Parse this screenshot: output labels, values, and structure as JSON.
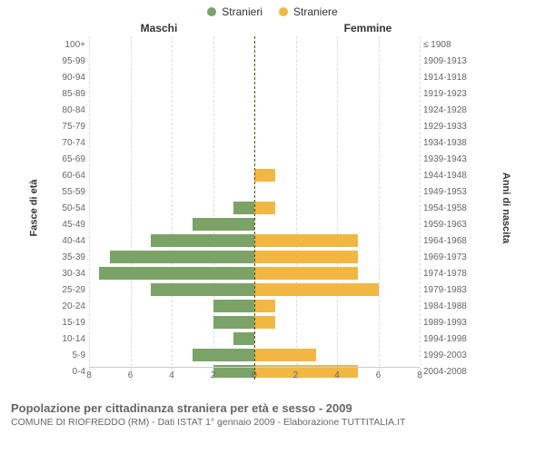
{
  "chart": {
    "type": "population-pyramid",
    "legend": {
      "male": {
        "label": "Stranieri",
        "color": "#7ba368"
      },
      "female": {
        "label": "Straniere",
        "color": "#f2b742"
      }
    },
    "col_headers": {
      "left": "Maschi",
      "right": "Femmine"
    },
    "y_label_left": "Fasce di età",
    "y_label_right": "Anni di nascita",
    "x_max": 8,
    "x_ticks": [
      8,
      6,
      4,
      2,
      0,
      2,
      4,
      6,
      8
    ],
    "grid_color": "#dddddd",
    "centerline_color": "#555500",
    "label_color": "#666666",
    "background": "#ffffff",
    "rows": [
      {
        "age": "100+",
        "year": "≤ 1908",
        "m": 0,
        "f": 0
      },
      {
        "age": "95-99",
        "year": "1909-1913",
        "m": 0,
        "f": 0
      },
      {
        "age": "90-94",
        "year": "1914-1918",
        "m": 0,
        "f": 0
      },
      {
        "age": "85-89",
        "year": "1919-1923",
        "m": 0,
        "f": 0
      },
      {
        "age": "80-84",
        "year": "1924-1928",
        "m": 0,
        "f": 0
      },
      {
        "age": "75-79",
        "year": "1929-1933",
        "m": 0,
        "f": 0
      },
      {
        "age": "70-74",
        "year": "1934-1938",
        "m": 0,
        "f": 0
      },
      {
        "age": "65-69",
        "year": "1939-1943",
        "m": 0,
        "f": 0
      },
      {
        "age": "60-64",
        "year": "1944-1948",
        "m": 0,
        "f": 1
      },
      {
        "age": "55-59",
        "year": "1949-1953",
        "m": 0,
        "f": 0
      },
      {
        "age": "50-54",
        "year": "1954-1958",
        "m": 1,
        "f": 1
      },
      {
        "age": "45-49",
        "year": "1959-1963",
        "m": 3,
        "f": 0
      },
      {
        "age": "40-44",
        "year": "1964-1968",
        "m": 5,
        "f": 5
      },
      {
        "age": "35-39",
        "year": "1969-1973",
        "m": 7,
        "f": 5
      },
      {
        "age": "30-34",
        "year": "1974-1978",
        "m": 7.5,
        "f": 5
      },
      {
        "age": "25-29",
        "year": "1979-1983",
        "m": 5,
        "f": 6
      },
      {
        "age": "20-24",
        "year": "1984-1988",
        "m": 2,
        "f": 1
      },
      {
        "age": "15-19",
        "year": "1989-1993",
        "m": 2,
        "f": 1
      },
      {
        "age": "10-14",
        "year": "1994-1998",
        "m": 1,
        "f": 0
      },
      {
        "age": "5-9",
        "year": "1999-2003",
        "m": 3,
        "f": 3
      },
      {
        "age": "0-4",
        "year": "2004-2008",
        "m": 2,
        "f": 5
      }
    ],
    "title": "Popolazione per cittadinanza straniera per età e sesso - 2009",
    "subtitle": "COMUNE DI RIOFREDDO (RM) - Dati ISTAT 1° gennaio 2009 - Elaborazione TUTTITALIA.IT"
  }
}
